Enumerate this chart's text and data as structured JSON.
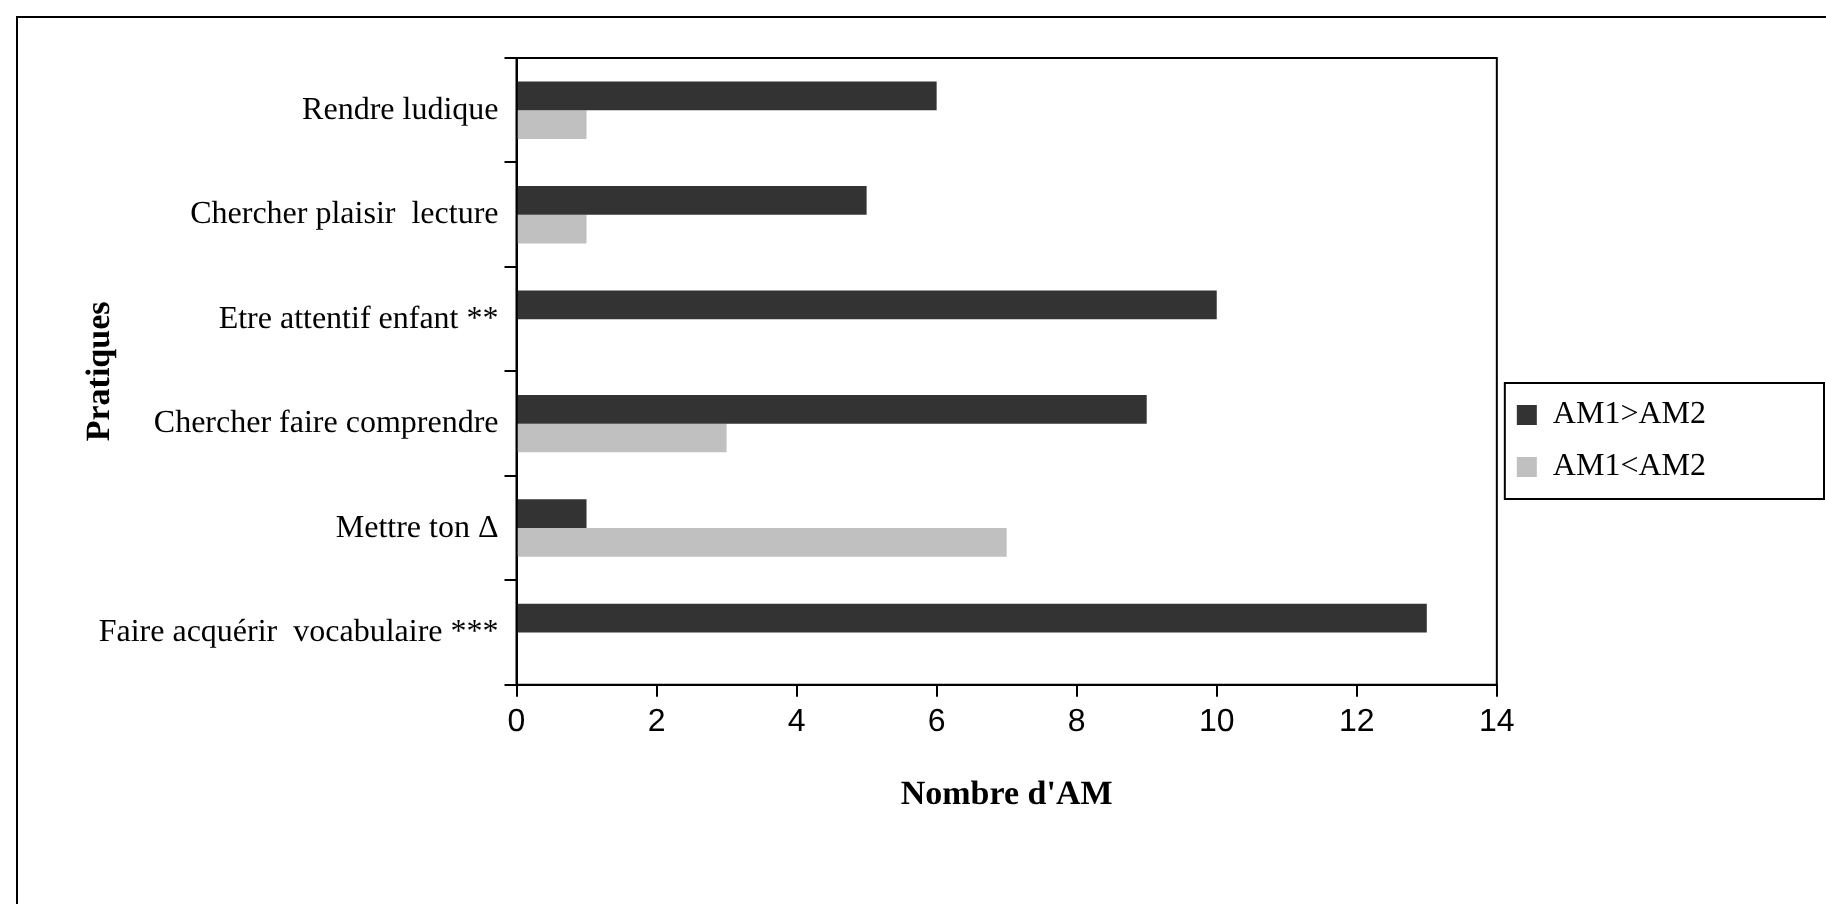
{
  "chart_data": {
    "type": "bar",
    "orientation": "horizontal",
    "xlabel": "Nombre d'AM",
    "ylabel": "Pratiques",
    "categories": [
      "Rendre ludique",
      "Chercher plaisir  lecture",
      "Etre attentif enfant **",
      "Chercher faire comprendre",
      "Mettre ton Δ",
      "Faire acquérir  vocabulaire ***"
    ],
    "series": [
      {
        "name": "AM1>AM2",
        "color": "#333333",
        "values": [
          6,
          5,
          10,
          9,
          1,
          13
        ]
      },
      {
        "name": "AM1<AM2",
        "color": "#c0c0c0",
        "values": [
          1,
          1,
          0,
          3,
          7,
          0
        ]
      }
    ],
    "xlim": [
      0,
      14
    ],
    "xticks": [
      0,
      2,
      4,
      6,
      8,
      10,
      12,
      14
    ],
    "grid": false,
    "legend": "right"
  }
}
